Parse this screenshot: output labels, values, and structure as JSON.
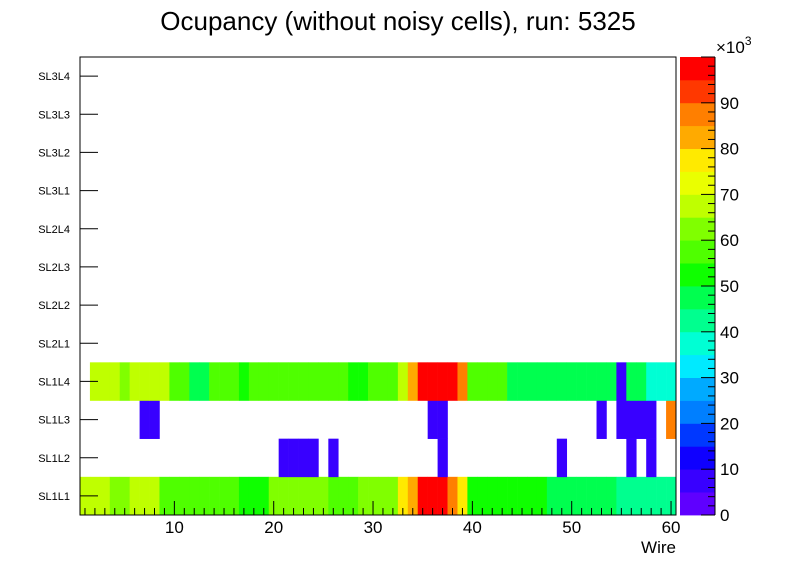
{
  "chart_data": {
    "type": "heatmap",
    "title": "Ocupancy (without noisy cells), run: 5325",
    "xlabel": "Wire",
    "ylabel": "",
    "xlim": [
      0.5,
      60.5
    ],
    "x_ticks": [
      10,
      20,
      30,
      40,
      50,
      60
    ],
    "y_categories": [
      "SL1L1",
      "SL1L2",
      "SL1L3",
      "SL1L4",
      "SL2L1",
      "SL2L2",
      "SL2L3",
      "SL2L4",
      "SL3L1",
      "SL3L2",
      "SL3L3",
      "SL3L4"
    ],
    "z_range": [
      0,
      100000
    ],
    "colorbar": {
      "multiplier_label": "×10",
      "multiplier_exponent": "3",
      "ticks": [
        0,
        10,
        20,
        30,
        40,
        50,
        60,
        70,
        80,
        90
      ],
      "colors": [
        "#5f00ff",
        "#3800ff",
        "#0f00ff",
        "#0038ff",
        "#007fff",
        "#00aaff",
        "#00eaff",
        "#00ffd4",
        "#00ff8f",
        "#00ff4f",
        "#0fff00",
        "#4fff00",
        "#80ff00",
        "#bfff00",
        "#eaff00",
        "#ffea00",
        "#ffaa00",
        "#ff7f00",
        "#ff3800",
        "#ff0000"
      ]
    },
    "rows": {
      "SL1L1": [
        65,
        65,
        65,
        62,
        62,
        65,
        65,
        65,
        58,
        58,
        55,
        55,
        58,
        58,
        56,
        56,
        52,
        52,
        52,
        62,
        62,
        62,
        62,
        62,
        62,
        55,
        55,
        55,
        62,
        62,
        62,
        62,
        78,
        82,
        95,
        95,
        95,
        88,
        75,
        52,
        52,
        52,
        50,
        50,
        50,
        50,
        50,
        45,
        45,
        45,
        45,
        45,
        45,
        45,
        42,
        42,
        42,
        42,
        42,
        42
      ],
      "SL1L2": [
        0,
        0,
        0,
        0,
        0,
        0,
        0,
        0,
        0,
        0,
        0,
        0,
        0,
        0,
        0,
        0,
        0,
        0,
        0,
        0,
        5,
        5,
        5,
        5,
        0,
        5,
        0,
        0,
        0,
        0,
        0,
        0,
        0,
        0,
        0,
        0,
        5,
        0,
        0,
        0,
        0,
        0,
        0,
        0,
        0,
        0,
        0,
        0,
        5,
        0,
        0,
        0,
        0,
        0,
        0,
        5,
        0,
        5,
        0,
        0
      ],
      "SL1L3": [
        0,
        0,
        0,
        0,
        0,
        0,
        5,
        5,
        0,
        0,
        0,
        0,
        0,
        0,
        0,
        0,
        0,
        0,
        0,
        0,
        0,
        0,
        0,
        0,
        0,
        0,
        0,
        0,
        0,
        0,
        0,
        0,
        0,
        0,
        0,
        5,
        5,
        0,
        0,
        0,
        0,
        0,
        0,
        0,
        0,
        0,
        0,
        0,
        0,
        0,
        0,
        0,
        5,
        0,
        5,
        5,
        5,
        5,
        0,
        85
      ],
      "SL1L4": [
        0,
        65,
        65,
        65,
        62,
        65,
        65,
        65,
        65,
        58,
        58,
        48,
        48,
        55,
        55,
        55,
        52,
        55,
        55,
        55,
        55,
        55,
        55,
        55,
        55,
        55,
        55,
        52,
        52,
        55,
        55,
        55,
        65,
        82,
        95,
        95,
        95,
        95,
        88,
        55,
        55,
        55,
        55,
        48,
        48,
        48,
        48,
        45,
        45,
        45,
        45,
        45,
        45,
        45,
        8,
        45,
        45,
        38,
        38,
        38
      ]
    }
  }
}
